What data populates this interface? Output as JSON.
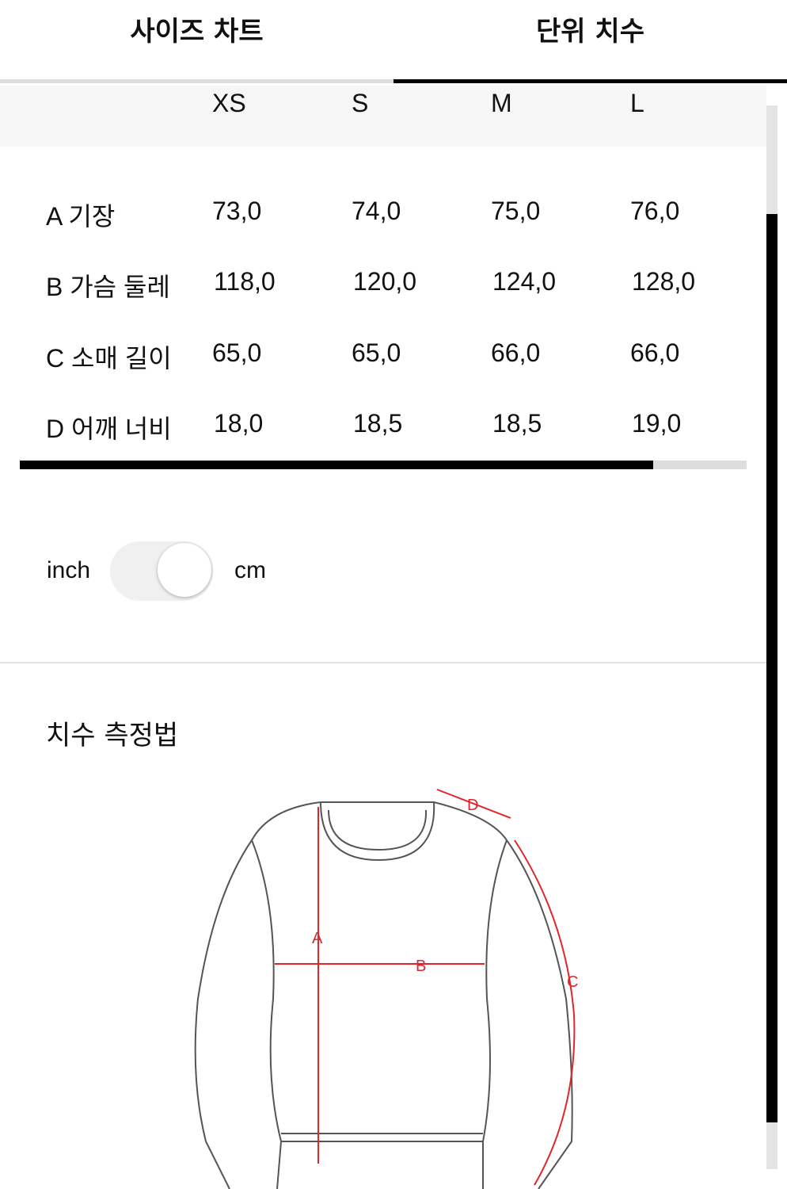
{
  "tabs": [
    {
      "label": "사이즈 차트",
      "active": false
    },
    {
      "label": "단위 치수",
      "active": true
    }
  ],
  "table": {
    "headers": [
      "XS",
      "S",
      "M",
      "L"
    ],
    "rows": [
      {
        "label": "A 기장",
        "values": [
          "73,0",
          "74,0",
          "75,0",
          "76,0"
        ]
      },
      {
        "label": "B 가슴 둘레",
        "values": [
          "118,0",
          "120,0",
          "124,0",
          "128,0"
        ]
      },
      {
        "label": "C 소매 길이",
        "values": [
          "65,0",
          "65,0",
          "66,0",
          "66,0"
        ]
      },
      {
        "label": "D 어깨 너비",
        "values": [
          "18,0",
          "18,5",
          "18,5",
          "19,0"
        ]
      }
    ]
  },
  "unit_toggle": {
    "left_label": "inch",
    "right_label": "cm",
    "selected": "cm"
  },
  "measure": {
    "title": "치수 측정법",
    "diagram_labels": {
      "a": "A",
      "b": "B",
      "c": "C",
      "d": "D"
    }
  },
  "colors": {
    "accent": "#000000",
    "measure_line": "#e0262b",
    "outline": "#555555"
  }
}
